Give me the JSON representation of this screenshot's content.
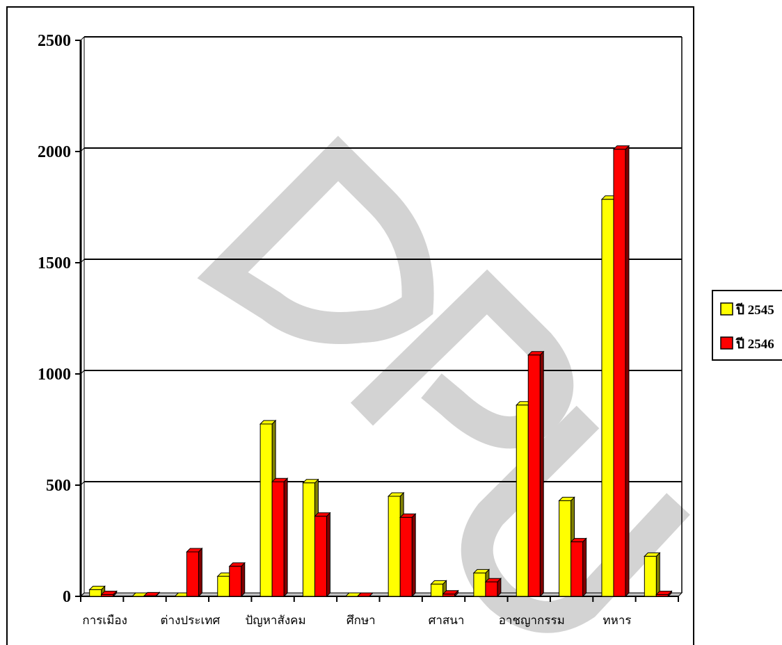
{
  "chart_data": {
    "type": "bar",
    "title": "",
    "xlabel": "",
    "ylabel": "",
    "ylim": [
      0,
      2500
    ],
    "yticks": [
      "0",
      "500",
      "1000",
      "1500",
      "2000",
      "2500"
    ],
    "ytick_values": [
      0,
      500,
      1000,
      1500,
      2000,
      2500
    ],
    "categories": [
      "การเมือง",
      "",
      "ต่างประเทศ",
      "",
      "ปัญหาสังคม",
      "",
      "ศึกษา",
      "",
      "ศาสนา",
      "",
      "อาชญากรรม",
      "",
      "ทหาร",
      ""
    ],
    "series": [
      {
        "name": "ปี 2545",
        "color": "#ffff00",
        "side_color": "#808000",
        "values": [
          30,
          0,
          0,
          90,
          775,
          510,
          0,
          450,
          55,
          105,
          860,
          430,
          1785,
          180
        ]
      },
      {
        "name": "ปี 2546",
        "color": "#ff0000",
        "side_color": "#800000",
        "values": [
          8,
          2,
          200,
          135,
          515,
          360,
          0,
          355,
          10,
          65,
          1085,
          245,
          2010,
          8
        ]
      }
    ],
    "grid": true,
    "legend_position": "right"
  },
  "watermark": {
    "text": "DPU",
    "color": "#d0d0d0"
  }
}
